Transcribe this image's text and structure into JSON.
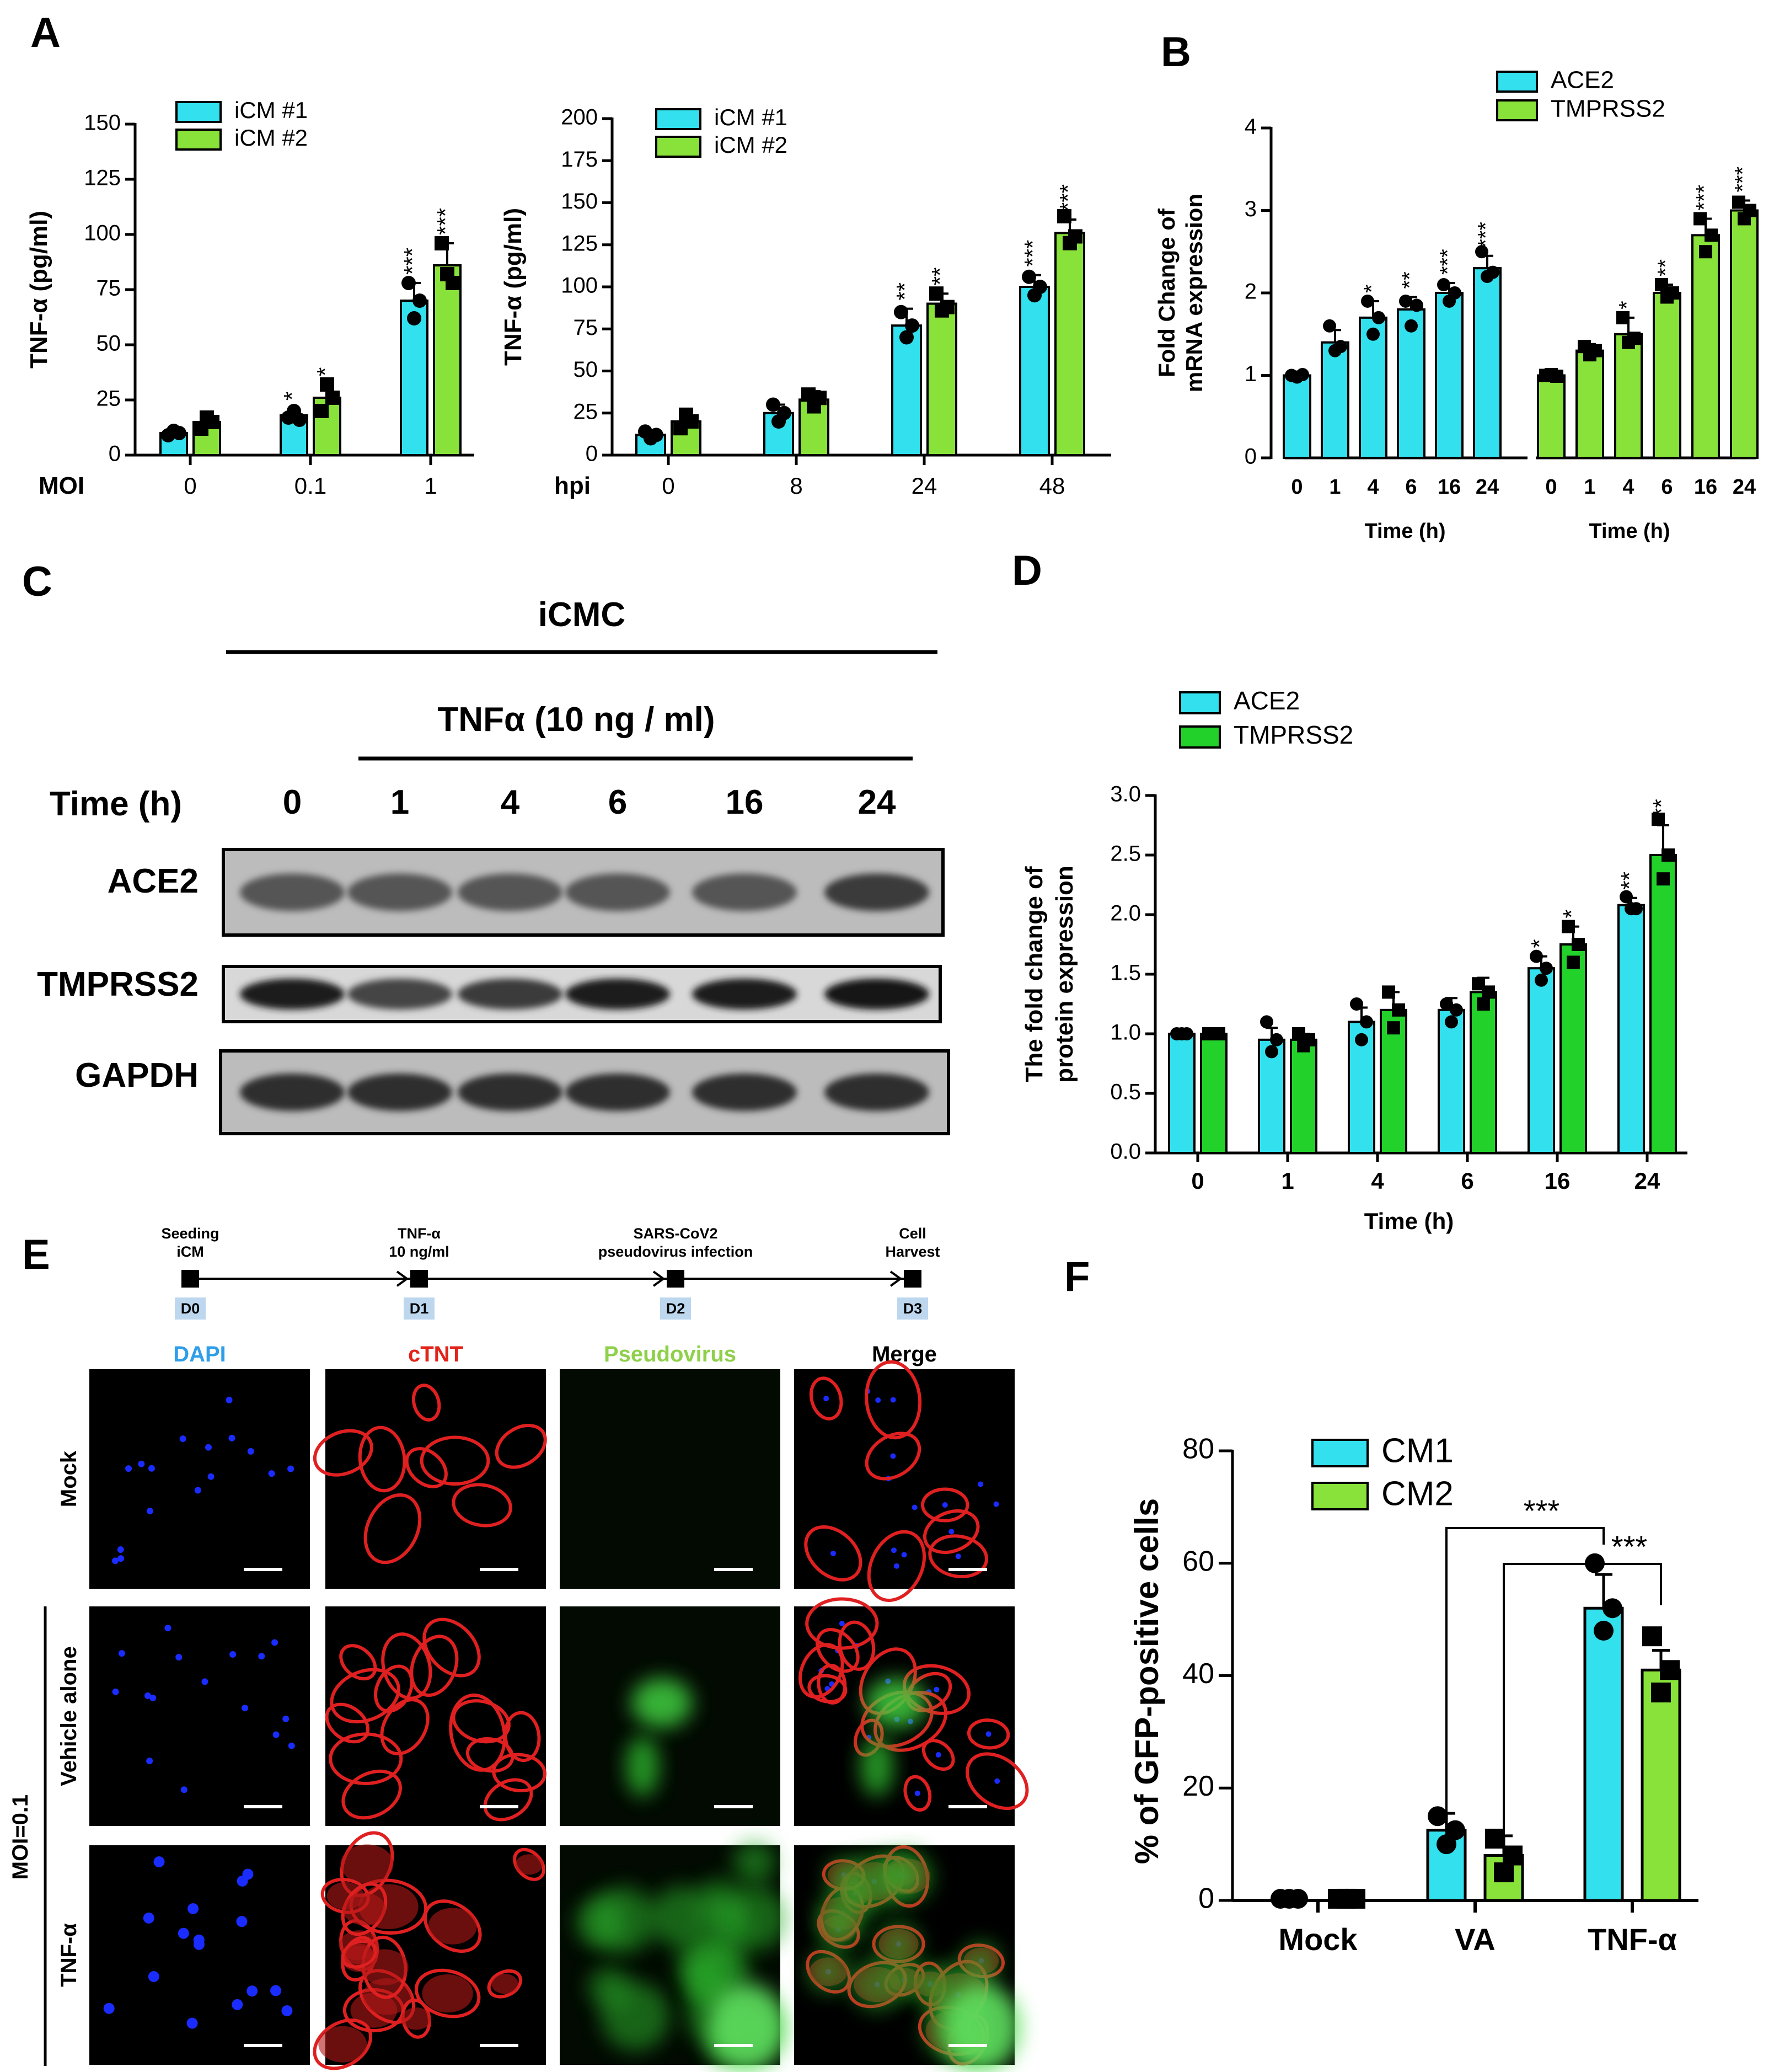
{
  "panels": {
    "A": "A",
    "B": "B",
    "C": "C",
    "D": "D",
    "E": "E",
    "F": "F"
  },
  "colors": {
    "cyan": "#33e0ee",
    "green": "#88e23a",
    "brightGreen": "#22d22a",
    "axis": "#000000",
    "blot": "#7a7a7a",
    "band": "#3a3a3a"
  },
  "chart_data": [
    {
      "id": "A1",
      "type": "bar",
      "ylabel": "TNF-α (pg/ml)",
      "xaxis_title": "MOI",
      "categories": [
        "0",
        "0.1",
        "1"
      ],
      "ylim": [
        0,
        150
      ],
      "yticks": [
        "0",
        "25",
        "50",
        "75",
        "100",
        "125",
        "150"
      ],
      "series": [
        {
          "name": "iCM #1",
          "color": "cyan",
          "values": [
            10,
            18,
            70
          ],
          "err": [
            2,
            3,
            8
          ],
          "points": [
            [
              9,
              11,
              10
            ],
            [
              17,
              20,
              16
            ],
            [
              78,
              62,
              70
            ]
          ],
          "marker": "circle",
          "sig": [
            "",
            "*",
            "***"
          ]
        },
        {
          "name": "iCM #2",
          "color": "green",
          "values": [
            15,
            26,
            86
          ],
          "err": [
            3,
            6,
            10
          ],
          "points": [
            [
              12,
              17,
              15
            ],
            [
              20,
              32,
              26
            ],
            [
              96,
              82,
              78
            ]
          ],
          "marker": "square",
          "sig": [
            "",
            "*",
            "***"
          ]
        }
      ]
    },
    {
      "id": "A2",
      "type": "bar",
      "ylabel": "TNF-α (pg/ml)",
      "xaxis_title": "hpi",
      "categories": [
        "0",
        "8",
        "24",
        "48"
      ],
      "ylim": [
        0,
        200
      ],
      "yticks": [
        "0",
        "25",
        "50",
        "75",
        "100",
        "125",
        "150",
        "175",
        "200"
      ],
      "series": [
        {
          "name": "iCM #1",
          "color": "cyan",
          "values": [
            12,
            25,
            77,
            100
          ],
          "err": [
            2,
            5,
            10,
            7
          ],
          "points": [
            [
              14,
              10,
              12
            ],
            [
              30,
              20,
              25
            ],
            [
              85,
              70,
              77
            ],
            [
              106,
              95,
              100
            ]
          ],
          "marker": "circle",
          "sig": [
            "",
            "",
            "**",
            "***"
          ]
        },
        {
          "name": "iCM #2",
          "color": "green",
          "values": [
            20,
            33,
            90,
            132
          ],
          "err": [
            4,
            5,
            6,
            8
          ],
          "points": [
            [
              16,
              24,
              20
            ],
            [
              36,
              29,
              34
            ],
            [
              96,
              86,
              88
            ],
            [
              142,
              126,
              130
            ]
          ],
          "marker": "square",
          "sig": [
            "",
            "",
            "**",
            "***"
          ]
        }
      ]
    },
    {
      "id": "B",
      "type": "bar",
      "ylabel": "Fold Change of mRNA expression",
      "xlabel": "Time (h)",
      "groups": [
        {
          "name": "ACE2",
          "color": "cyan",
          "categories": [
            "0",
            "1",
            "4",
            "6",
            "16",
            "24"
          ],
          "values": [
            1.0,
            1.4,
            1.7,
            1.8,
            2.0,
            2.3
          ],
          "err": [
            0.03,
            0.15,
            0.2,
            0.15,
            0.12,
            0.15
          ],
          "points": [
            [
              1.0,
              0.98,
              1.01
            ],
            [
              1.6,
              1.3,
              1.35
            ],
            [
              1.9,
              1.5,
              1.7
            ],
            [
              1.9,
              1.6,
              1.85
            ],
            [
              2.1,
              1.9,
              2.0
            ],
            [
              2.5,
              2.2,
              2.25
            ]
          ],
          "marker": "circle",
          "sig": [
            "",
            "",
            "*",
            "**",
            "***",
            "***"
          ]
        },
        {
          "name": "TMPRSS2",
          "color": "green",
          "categories": [
            "0",
            "1",
            "4",
            "6",
            "16",
            "24"
          ],
          "values": [
            1.0,
            1.3,
            1.5,
            2.0,
            2.7,
            3.0
          ],
          "err": [
            0.02,
            0.08,
            0.2,
            0.1,
            0.2,
            0.12
          ],
          "points": [
            [
              1.0,
              1.01,
              0.99
            ],
            [
              1.35,
              1.25,
              1.3
            ],
            [
              1.7,
              1.4,
              1.45
            ],
            [
              2.1,
              1.95,
              2.0
            ],
            [
              2.9,
              2.5,
              2.7
            ],
            [
              3.1,
              2.9,
              3.0
            ]
          ],
          "marker": "square",
          "sig": [
            "",
            "",
            "*",
            "**",
            "***",
            "***"
          ]
        }
      ],
      "ylim": [
        0,
        4
      ],
      "yticks": [
        "0",
        "1",
        "2",
        "3",
        "4"
      ],
      "legend": [
        "ACE2",
        "TMPRSS2"
      ]
    },
    {
      "id": "D",
      "type": "bar",
      "ylabel": "The fold change of protein expression",
      "xlabel": "Time (h)",
      "categories": [
        "0",
        "1",
        "4",
        "6",
        "16",
        "24"
      ],
      "ylim": [
        0,
        3.0
      ],
      "yticks": [
        "0.0",
        "0.5",
        "1.0",
        "1.5",
        "2.0",
        "2.5",
        "3.0"
      ],
      "series": [
        {
          "name": "ACE2",
          "color": "cyan",
          "values": [
            1.0,
            0.95,
            1.1,
            1.2,
            1.55,
            2.08
          ],
          "err": [
            0.01,
            0.1,
            0.12,
            0.1,
            0.1,
            0.06
          ],
          "points": [
            [
              1.0,
              1.0,
              1.0
            ],
            [
              1.1,
              0.85,
              0.95
            ],
            [
              1.25,
              0.95,
              1.1
            ],
            [
              1.25,
              1.1,
              1.2
            ],
            [
              1.65,
              1.45,
              1.55
            ],
            [
              2.15,
              2.05,
              2.05
            ]
          ],
          "marker": "circle",
          "sig": [
            "",
            "",
            "",
            "",
            "*",
            "**"
          ]
        },
        {
          "name": "TMPRSS2",
          "color": "brightGreen",
          "values": [
            1.0,
            0.95,
            1.2,
            1.35,
            1.75,
            2.5
          ],
          "err": [
            0.01,
            0.05,
            0.15,
            0.12,
            0.15,
            0.25
          ],
          "points": [
            [
              1.0,
              1.0,
              1.0
            ],
            [
              1.0,
              0.9,
              0.95
            ],
            [
              1.35,
              1.05,
              1.2
            ],
            [
              1.42,
              1.25,
              1.35
            ],
            [
              1.9,
              1.6,
              1.75
            ],
            [
              2.8,
              2.3,
              2.5
            ]
          ],
          "marker": "square",
          "sig": [
            "",
            "",
            "",
            "",
            "*",
            "**"
          ]
        }
      ],
      "legend": [
        "ACE2",
        "TMPRSS2"
      ]
    },
    {
      "id": "F",
      "type": "bar",
      "ylabel": "% of GFP-positive cells",
      "categories": [
        "Mock",
        "VA",
        "TNF-α"
      ],
      "ylim": [
        0,
        80
      ],
      "yticks": [
        "0",
        "20",
        "40",
        "60",
        "80"
      ],
      "series": [
        {
          "name": "CM1",
          "color": "cyan",
          "values": [
            0.3,
            12.5,
            52
          ],
          "err": [
            0.1,
            3,
            6
          ],
          "points": [
            [
              0.3,
              0.3,
              0.3
            ],
            [
              15,
              10,
              12.5
            ],
            [
              60,
              48,
              52
            ]
          ],
          "marker": "circle"
        },
        {
          "name": "CM2",
          "color": "green",
          "values": [
            0.3,
            8,
            41
          ],
          "err": [
            0.1,
            3.5,
            3.5
          ],
          "points": [
            [
              0.3,
              0.3,
              0.3
            ],
            [
              11,
              5,
              8
            ],
            [
              47,
              37,
              41
            ]
          ],
          "marker": "square"
        }
      ],
      "comparisons": [
        "***",
        "***"
      ],
      "legend": [
        "CM1",
        "CM2"
      ]
    }
  ],
  "blot": {
    "header": "iCMC",
    "treatment": "TNFα (10 ng / ml)",
    "time_label": "Time (h)",
    "times": [
      "0",
      "1",
      "4",
      "6",
      "16",
      "24"
    ],
    "rows": [
      "ACE2",
      "TMPRSS2",
      "GAPDH"
    ]
  },
  "timeline": {
    "steps": [
      {
        "label1": "Seeding",
        "label2": "iCM",
        "day": "D0"
      },
      {
        "label1": "TNF-α",
        "label2": "10 ng/ml",
        "day": "D1"
      },
      {
        "label1": "SARS-CoV2",
        "label2": "pseudovirus infection",
        "day": "D2"
      },
      {
        "label1": "Cell",
        "label2": "Harvest",
        "day": "D3"
      }
    ]
  },
  "microscopy": {
    "columns": [
      {
        "label": "DAPI",
        "color": "#2f9ee8"
      },
      {
        "label": "cTNT",
        "color": "#e2231a"
      },
      {
        "label": "Pseudovirus",
        "color": "#8ed04a"
      },
      {
        "label": "Merge",
        "color": "#000000"
      }
    ],
    "rows": [
      "Mock",
      "Vehicle alone",
      "TNF-α"
    ],
    "group_label": "MOI=0.1"
  }
}
